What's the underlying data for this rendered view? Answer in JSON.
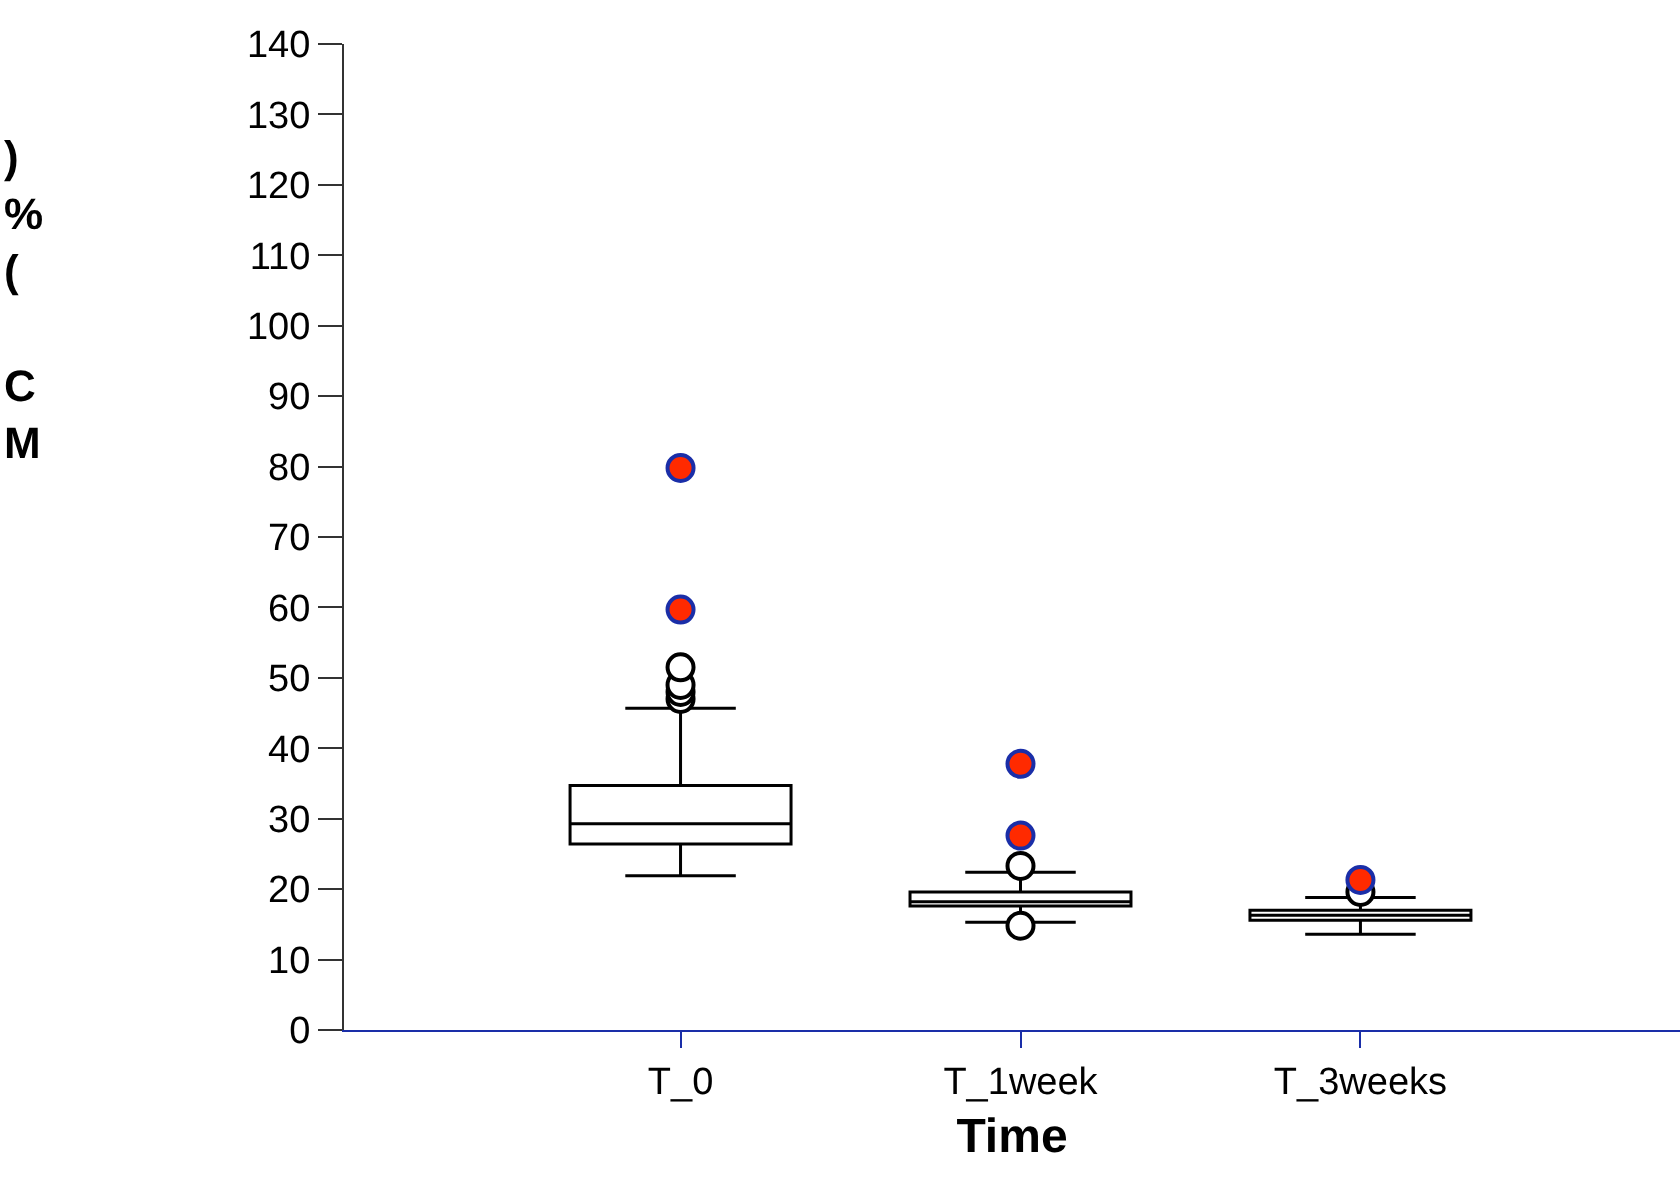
{
  "chart_data": {
    "type": "box",
    "xlabel": "Time",
    "ylabel": ")\n%\n(\n\nC\nM",
    "categories": [
      "T_0",
      "T_1week",
      "T_3weeks"
    ],
    "ylim": [
      0,
      140
    ],
    "yticks": [
      0,
      10,
      20,
      30,
      40,
      50,
      60,
      70,
      80,
      90,
      100,
      110,
      120,
      130,
      140
    ],
    "boxes": [
      {
        "low": 21.9,
        "q1": 26.4,
        "median": 29.3,
        "q3": 34.7,
        "high": 45.7,
        "outliers": [
          47,
          48,
          49,
          51.5
        ]
      },
      {
        "low": 15.3,
        "q1": 17.6,
        "median": 18.2,
        "q3": 19.6,
        "high": 22.4,
        "outliers": [
          14.8,
          23.3
        ]
      },
      {
        "low": 13.6,
        "q1": 15.6,
        "median": 16.3,
        "q3": 17.0,
        "high": 18.8,
        "outliers": [
          19.6
        ]
      }
    ],
    "series": [
      {
        "type": "scatter",
        "color": "#ff2a00",
        "x": [
          "T_0",
          "T_0",
          "T_1week",
          "T_1week",
          "T_3weeks"
        ],
        "values": [
          79.8,
          59.7,
          37.8,
          27.6,
          21.3
        ]
      }
    ]
  }
}
